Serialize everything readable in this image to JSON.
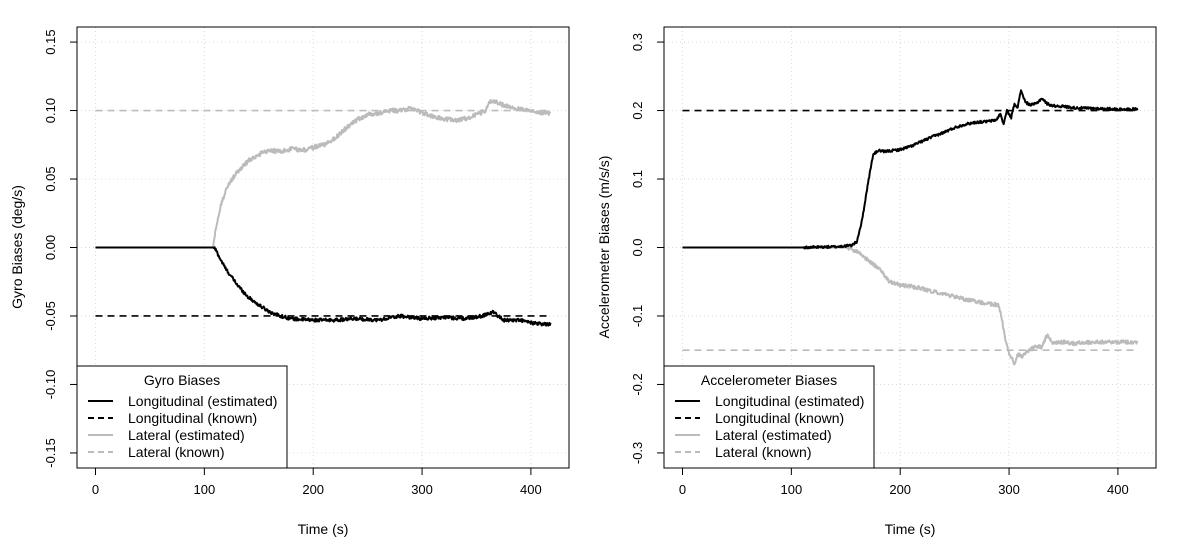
{
  "chart_data": [
    {
      "type": "line",
      "xlabel": "Time (s)",
      "ylabel": "Gyro Biases (deg/s)",
      "xlim": [
        -17,
        435
      ],
      "ylim": [
        -0.161,
        0.161
      ],
      "xticks": [
        0,
        100,
        200,
        300,
        400
      ],
      "yticks": [
        -0.15,
        -0.1,
        -0.05,
        0.0,
        0.05,
        0.1,
        0.15
      ],
      "xtick_labels": [
        "0",
        "100",
        "200",
        "300",
        "400"
      ],
      "ytick_labels": [
        "-0.15",
        "-0.10",
        "-0.05",
        "0.00",
        "0.05",
        "0.10",
        "0.15"
      ],
      "grid": true,
      "legend": {
        "title": "Gyro Biases",
        "position": "bottom-left",
        "entries": [
          "Longitudinal (estimated)",
          "Longitudinal (known)",
          "Lateral (estimated)",
          "Lateral (known)"
        ]
      },
      "series": [
        {
          "name": "Longitudinal (estimated)",
          "color": "#000000",
          "style": "solid",
          "points": [
            [
              0,
              0
            ],
            [
              108,
              0
            ],
            [
              110,
              -0.001
            ],
            [
              115,
              -0.009
            ],
            [
              120,
              -0.016
            ],
            [
              130,
              -0.027
            ],
            [
              140,
              -0.036
            ],
            [
              150,
              -0.042
            ],
            [
              160,
              -0.047
            ],
            [
              170,
              -0.05
            ],
            [
              180,
              -0.052
            ],
            [
              200,
              -0.053
            ],
            [
              220,
              -0.053
            ],
            [
              240,
              -0.052
            ],
            [
              260,
              -0.053
            ],
            [
              280,
              -0.05
            ],
            [
              300,
              -0.052
            ],
            [
              320,
              -0.051
            ],
            [
              340,
              -0.052
            ],
            [
              355,
              -0.05
            ],
            [
              365,
              -0.047
            ],
            [
              375,
              -0.053
            ],
            [
              390,
              -0.053
            ],
            [
              400,
              -0.055
            ],
            [
              410,
              -0.056
            ],
            [
              418,
              -0.056
            ]
          ],
          "noise": 0.0012
        },
        {
          "name": "Longitudinal (known)",
          "color": "#000000",
          "style": "dashed",
          "points": [
            [
              0,
              -0.05
            ],
            [
              418,
              -0.05
            ]
          ]
        },
        {
          "name": "Lateral (estimated)",
          "color": "#bbbbbb",
          "style": "solid",
          "points": [
            [
              0,
              0
            ],
            [
              108,
              0
            ],
            [
              110,
              0.012
            ],
            [
              115,
              0.03
            ],
            [
              120,
              0.043
            ],
            [
              130,
              0.055
            ],
            [
              140,
              0.063
            ],
            [
              150,
              0.068
            ],
            [
              160,
              0.071
            ],
            [
              170,
              0.07
            ],
            [
              180,
              0.072
            ],
            [
              190,
              0.071
            ],
            [
              200,
              0.073
            ],
            [
              210,
              0.075
            ],
            [
              220,
              0.08
            ],
            [
              230,
              0.087
            ],
            [
              240,
              0.093
            ],
            [
              250,
              0.097
            ],
            [
              260,
              0.098
            ],
            [
              270,
              0.1
            ],
            [
              280,
              0.1
            ],
            [
              290,
              0.102
            ],
            [
              300,
              0.098
            ],
            [
              310,
              0.096
            ],
            [
              320,
              0.094
            ],
            [
              330,
              0.093
            ],
            [
              340,
              0.094
            ],
            [
              350,
              0.097
            ],
            [
              358,
              0.1
            ],
            [
              363,
              0.107
            ],
            [
              368,
              0.106
            ],
            [
              375,
              0.104
            ],
            [
              385,
              0.101
            ],
            [
              395,
              0.101
            ],
            [
              405,
              0.099
            ],
            [
              418,
              0.098
            ]
          ],
          "noise": 0.0016
        },
        {
          "name": "Lateral (known)",
          "color": "#bbbbbb",
          "style": "dashed",
          "points": [
            [
              0,
              0.1
            ],
            [
              418,
              0.1
            ]
          ]
        }
      ]
    },
    {
      "type": "line",
      "xlabel": "Time (s)",
      "ylabel": "Accelerometer Biases (m/s/s)",
      "xlim": [
        -17,
        435
      ],
      "ylim": [
        -0.322,
        0.322
      ],
      "xticks": [
        0,
        100,
        200,
        300,
        400
      ],
      "yticks": [
        -0.3,
        -0.2,
        -0.1,
        0.0,
        0.1,
        0.2,
        0.3
      ],
      "xtick_labels": [
        "0",
        "100",
        "200",
        "300",
        "400"
      ],
      "ytick_labels": [
        "-0.3",
        "-0.2",
        "-0.1",
        "0.0",
        "0.1",
        "0.2",
        "0.3"
      ],
      "grid": true,
      "legend": {
        "title": "Accelerometer Biases",
        "position": "bottom-left",
        "entries": [
          "Longitudinal (estimated)",
          "Longitudinal (known)",
          "Lateral (estimated)",
          "Lateral (known)"
        ]
      },
      "series": [
        {
          "name": "Longitudinal (estimated)",
          "color": "#000000",
          "style": "solid",
          "points": [
            [
              0,
              0
            ],
            [
              110,
              0
            ],
            [
              140,
              0.001
            ],
            [
              155,
              0.003
            ],
            [
              160,
              0.008
            ],
            [
              165,
              0.04
            ],
            [
              170,
              0.09
            ],
            [
              175,
              0.135
            ],
            [
              180,
              0.142
            ],
            [
              185,
              0.14
            ],
            [
              190,
              0.141
            ],
            [
              200,
              0.143
            ],
            [
              210,
              0.148
            ],
            [
              220,
              0.155
            ],
            [
              230,
              0.162
            ],
            [
              240,
              0.168
            ],
            [
              250,
              0.175
            ],
            [
              260,
              0.18
            ],
            [
              270,
              0.183
            ],
            [
              280,
              0.184
            ],
            [
              288,
              0.186
            ],
            [
              292,
              0.195
            ],
            [
              295,
              0.18
            ],
            [
              298,
              0.2
            ],
            [
              302,
              0.19
            ],
            [
              305,
              0.21
            ],
            [
              308,
              0.205
            ],
            [
              311,
              0.23
            ],
            [
              315,
              0.212
            ],
            [
              320,
              0.208
            ],
            [
              325,
              0.21
            ],
            [
              330,
              0.218
            ],
            [
              335,
              0.21
            ],
            [
              340,
              0.207
            ],
            [
              350,
              0.206
            ],
            [
              360,
              0.204
            ],
            [
              380,
              0.203
            ],
            [
              400,
              0.202
            ],
            [
              418,
              0.202
            ]
          ],
          "noise": 0.0018
        },
        {
          "name": "Longitudinal (known)",
          "color": "#000000",
          "style": "dashed",
          "points": [
            [
              0,
              0.2
            ],
            [
              418,
              0.2
            ]
          ]
        },
        {
          "name": "Lateral (estimated)",
          "color": "#bbbbbb",
          "style": "solid",
          "points": [
            [
              0,
              0
            ],
            [
              150,
              0
            ],
            [
              160,
              -0.005
            ],
            [
              170,
              -0.018
            ],
            [
              180,
              -0.03
            ],
            [
              190,
              -0.05
            ],
            [
              200,
              -0.055
            ],
            [
              210,
              -0.057
            ],
            [
              220,
              -0.06
            ],
            [
              230,
              -0.064
            ],
            [
              240,
              -0.068
            ],
            [
              250,
              -0.072
            ],
            [
              260,
              -0.076
            ],
            [
              270,
              -0.079
            ],
            [
              280,
              -0.082
            ],
            [
              290,
              -0.084
            ],
            [
              293,
              -0.1
            ],
            [
              296,
              -0.13
            ],
            [
              299,
              -0.15
            ],
            [
              302,
              -0.16
            ],
            [
              305,
              -0.17
            ],
            [
              308,
              -0.155
            ],
            [
              312,
              -0.16
            ],
            [
              318,
              -0.15
            ],
            [
              325,
              -0.145
            ],
            [
              330,
              -0.145
            ],
            [
              335,
              -0.128
            ],
            [
              340,
              -0.14
            ],
            [
              350,
              -0.138
            ],
            [
              360,
              -0.14
            ],
            [
              380,
              -0.138
            ],
            [
              400,
              -0.138
            ],
            [
              418,
              -0.138
            ]
          ],
          "noise": 0.0028
        },
        {
          "name": "Lateral (known)",
          "color": "#bbbbbb",
          "style": "dashed",
          "points": [
            [
              0,
              -0.15
            ],
            [
              418,
              -0.15
            ]
          ]
        }
      ]
    }
  ]
}
